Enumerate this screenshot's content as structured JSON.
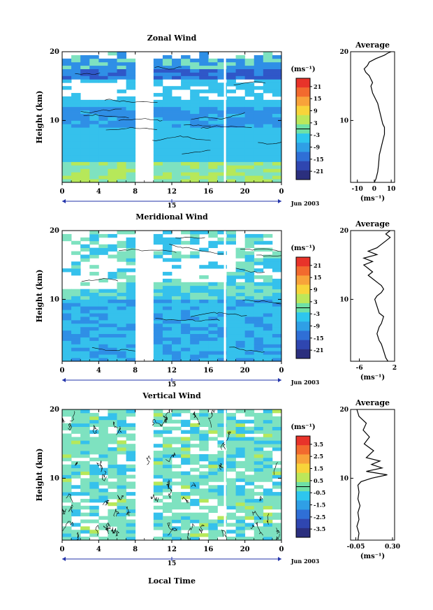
{
  "chart_data": [
    {
      "type": "heatmap",
      "title": "Zonal Wind",
      "ylabel": "Height (km)",
      "y_ticks": [
        "20",
        "10"
      ],
      "x_ticks": [
        "0",
        "4",
        "8",
        "12",
        "16",
        "20",
        "0"
      ],
      "date_label": "15",
      "month_label": "Jun 2003",
      "unit_label": "(ms⁻¹)",
      "colorbar_ticks": [
        "21",
        "15",
        "9",
        "3",
        "-3",
        "-9",
        "-15",
        "-21"
      ],
      "profile": {
        "title": "Average",
        "y_ticks": [
          "20",
          "10"
        ],
        "x_ticks": [
          "-10",
          "0",
          "10"
        ],
        "xlabel": "(ms⁻¹)",
        "xlim": [
          -14,
          12
        ],
        "points": [
          [
            0,
            1
          ],
          [
            1,
            1.5
          ],
          [
            2,
            2.5
          ],
          [
            2.5,
            3.5
          ],
          [
            3,
            5
          ],
          [
            4,
            6
          ],
          [
            5,
            7
          ],
          [
            6,
            8
          ],
          [
            6,
            9
          ],
          [
            5,
            9.5
          ],
          [
            4,
            10.5
          ],
          [
            3,
            11.5
          ],
          [
            2,
            12.5
          ],
          [
            1,
            13
          ],
          [
            0,
            13.5
          ],
          [
            -1,
            14
          ],
          [
            -2,
            15
          ],
          [
            -1,
            15.5
          ],
          [
            -2,
            16
          ],
          [
            -3,
            16.5
          ],
          [
            -5,
            17
          ],
          [
            -6,
            17.5
          ],
          [
            -4,
            18
          ],
          [
            -3,
            18.5
          ],
          [
            1,
            19
          ],
          [
            4,
            19.3
          ],
          [
            6,
            19.5
          ],
          [
            8,
            19.8
          ],
          [
            10,
            20
          ]
        ]
      }
    },
    {
      "type": "heatmap",
      "title": "Meridional Wind",
      "ylabel": "Height (km)",
      "y_ticks": [
        "20",
        "10"
      ],
      "x_ticks": [
        "0",
        "4",
        "8",
        "12",
        "16",
        "20",
        "0"
      ],
      "date_label": "15",
      "month_label": "Jun 2003",
      "unit_label": "(ms⁻¹)",
      "colorbar_ticks": [
        "21",
        "15",
        "9",
        "3",
        "-3",
        "-9",
        "-15",
        "-21"
      ],
      "profile": {
        "title": "Average",
        "y_ticks": [
          "20",
          "10"
        ],
        "x_ticks": [
          "-6",
          "2"
        ],
        "xlabel": "(ms⁻¹)",
        "xlim": [
          -8,
          2
        ],
        "points": [
          [
            0.5,
            1
          ],
          [
            0,
            1.5
          ],
          [
            -0.5,
            2.5
          ],
          [
            -1,
            3.5
          ],
          [
            -1.5,
            4
          ],
          [
            -2,
            5
          ],
          [
            -1.5,
            6
          ],
          [
            -1,
            6.5
          ],
          [
            -0.5,
            7.5
          ],
          [
            -1.5,
            8
          ],
          [
            -2,
            9
          ],
          [
            -2.5,
            10
          ],
          [
            -2,
            10.5
          ],
          [
            -1,
            11
          ],
          [
            -0.5,
            11.5
          ],
          [
            -1,
            12
          ],
          [
            -2,
            12.5
          ],
          [
            -3,
            13
          ],
          [
            -4,
            13.5
          ],
          [
            -3,
            14
          ],
          [
            -4,
            14.5
          ],
          [
            -5,
            15
          ],
          [
            -3,
            15.5
          ],
          [
            -5,
            16
          ],
          [
            -2,
            16.5
          ],
          [
            -4,
            17
          ],
          [
            -2,
            17.5
          ],
          [
            -1,
            18
          ],
          [
            0,
            18.5
          ],
          [
            1,
            19
          ],
          [
            0,
            19.5
          ],
          [
            1,
            20
          ]
        ]
      }
    },
    {
      "type": "heatmap",
      "title": "Vertical Wind",
      "ylabel": "Height (km)",
      "xlabel": "Local Time",
      "y_ticks": [
        "20",
        "10"
      ],
      "x_ticks": [
        "0",
        "4",
        "8",
        "12",
        "16",
        "20",
        "0"
      ],
      "date_label": "15",
      "month_label": "Jun 2003",
      "unit_label": "(ms⁻¹)",
      "colorbar_ticks": [
        "3.5",
        "2.5",
        "1.5",
        "0.5",
        "-0.5",
        "-1.5",
        "-2.5",
        "-3.5"
      ],
      "profile": {
        "title": "Average",
        "y_ticks": [
          "20",
          "10"
        ],
        "x_ticks": [
          "-0.05",
          "0.30"
        ],
        "xlabel": "(ms⁻¹)",
        "xlim": [
          -0.1,
          0.32
        ],
        "points": [
          [
            -0.03,
            1
          ],
          [
            -0.02,
            2
          ],
          [
            -0.04,
            3
          ],
          [
            -0.02,
            4
          ],
          [
            -0.03,
            5
          ],
          [
            -0.01,
            6
          ],
          [
            -0.03,
            7
          ],
          [
            -0.02,
            8
          ],
          [
            -0.03,
            9
          ],
          [
            0.0,
            9.5
          ],
          [
            0.1,
            10
          ],
          [
            0.25,
            10.5
          ],
          [
            0.05,
            11
          ],
          [
            0.2,
            11.5
          ],
          [
            0.1,
            12
          ],
          [
            0.18,
            12.5
          ],
          [
            0.05,
            13
          ],
          [
            0.12,
            14
          ],
          [
            0.03,
            15
          ],
          [
            0.08,
            16
          ],
          [
            0.02,
            17
          ],
          [
            0.05,
            18
          ],
          [
            -0.02,
            19
          ],
          [
            -0.04,
            20
          ]
        ]
      }
    }
  ]
}
